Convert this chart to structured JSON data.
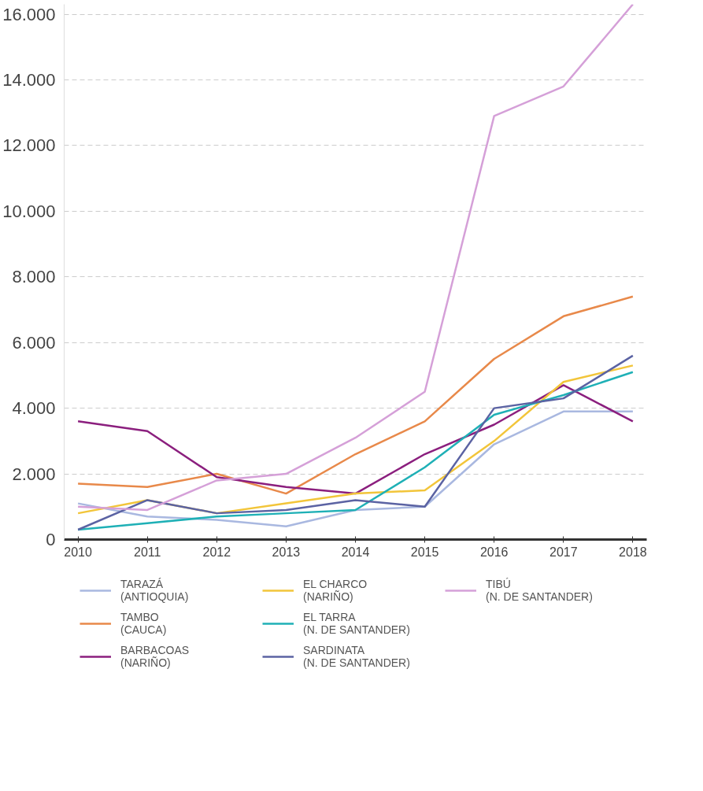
{
  "chart_data": {
    "type": "line",
    "x": [
      2010,
      2011,
      2012,
      2013,
      2014,
      2015,
      2016,
      2017,
      2018
    ],
    "series": [
      {
        "name": "TARAZÁ\n(ANTIOQUIA)",
        "color": "#a9b8e0",
        "values": [
          1100,
          700,
          600,
          400,
          900,
          1000,
          2900,
          3900,
          3900
        ]
      },
      {
        "name": "TAMBO\n(CAUCA)",
        "color": "#e8894a",
        "values": [
          1700,
          1600,
          2000,
          1400,
          2600,
          3600,
          5500,
          6800,
          7400
        ]
      },
      {
        "name": "BARBACOAS\n(NARIÑO)",
        "color": "#8b1f7e",
        "values": [
          3600,
          3300,
          1900,
          1600,
          1400,
          2600,
          3500,
          4700,
          3600
        ]
      },
      {
        "name": "EL CHARCO\n(NARIÑO)",
        "color": "#f2c53a",
        "values": [
          800,
          1200,
          800,
          1100,
          1400,
          1500,
          3000,
          4800,
          5300
        ]
      },
      {
        "name": "EL TARRA\n(N. DE SANTANDER)",
        "color": "#1fb0b6",
        "values": [
          300,
          500,
          700,
          800,
          900,
          2200,
          3800,
          4400,
          5100
        ]
      },
      {
        "name": "SARDINATA\n(N. DE SANTANDER)",
        "color": "#5b63a3",
        "values": [
          300,
          1200,
          800,
          900,
          1200,
          1000,
          4000,
          4300,
          5600
        ]
      },
      {
        "name": "TIBÚ\n(N. DE SANTANDER)",
        "color": "#d5a0d8",
        "values": [
          1000,
          900,
          1800,
          2000,
          3100,
          4500,
          12900,
          13800,
          16300
        ]
      }
    ],
    "xlim": [
      2009.8,
      2018.2
    ],
    "ylim": [
      0,
      16300
    ],
    "xticks": [
      2010,
      2011,
      2012,
      2013,
      2014,
      2015,
      2016,
      2017,
      2018
    ],
    "yticks": [
      0,
      {
        "value": 2000,
        "label": "2.000"
      },
      {
        "value": 4000,
        "label": "4.000"
      },
      {
        "value": 6000,
        "label": "6.000"
      },
      {
        "value": 8000,
        "label": "8.000"
      },
      {
        "value": 10000,
        "label": "10.000"
      },
      {
        "value": 12000,
        "label": "12.000"
      },
      {
        "value": 14000,
        "label": "14.000"
      },
      {
        "value": 16000,
        "label": "16.000"
      }
    ],
    "grid": "y",
    "legend": "bottom",
    "line_style": "solid"
  }
}
